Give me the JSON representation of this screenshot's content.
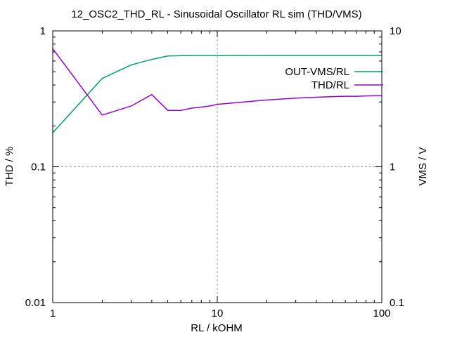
{
  "chart_data": {
    "type": "line",
    "title": "12_OSC2_THD_RL - Sinusoidal Oscillator RL sim  (THD/VMS)",
    "xlabel": "RL / kOHM",
    "ylabel_left": "THD / %",
    "ylabel_right": "VMS / V",
    "x_scale": "log",
    "y_scale": "log",
    "xlim": [
      1,
      100
    ],
    "ylim_left": [
      0.01,
      1
    ],
    "ylim_right": [
      0.1,
      10
    ],
    "x_ticks": [
      1,
      10,
      100
    ],
    "x_tick_labels": [
      "1",
      "10",
      "100"
    ],
    "y_left_ticks": [
      0.01,
      0.1,
      1
    ],
    "y_left_tick_labels": [
      "0.01",
      "0.1",
      "1"
    ],
    "y_right_ticks": [
      0.1,
      1,
      10
    ],
    "y_right_tick_labels": [
      "0.1",
      "1",
      "10"
    ],
    "grid": true,
    "legend_position": "top-right",
    "series": [
      {
        "name": "OUT-VMS/RL",
        "axis": "right",
        "color": "#009e73",
        "x": [
          1,
          2,
          3,
          4,
          5,
          6,
          7,
          8,
          9,
          10,
          20,
          30,
          40,
          50,
          60,
          70,
          80,
          90,
          100
        ],
        "y": [
          1.78,
          4.47,
          5.62,
          6.17,
          6.53,
          6.57,
          6.58,
          6.58,
          6.58,
          6.58,
          6.6,
          6.6,
          6.6,
          6.6,
          6.6,
          6.6,
          6.6,
          6.6,
          6.6
        ]
      },
      {
        "name": "THD/RL",
        "axis": "left",
        "color": "#9400d3",
        "x": [
          1,
          2,
          3,
          4,
          5,
          6,
          7,
          8,
          9,
          10,
          20,
          30,
          40,
          50,
          60,
          70,
          80,
          90,
          100
        ],
        "y": [
          0.74,
          0.24,
          0.28,
          0.34,
          0.26,
          0.26,
          0.27,
          0.275,
          0.28,
          0.288,
          0.31,
          0.32,
          0.325,
          0.328,
          0.33,
          0.33,
          0.332,
          0.333,
          0.333
        ]
      }
    ]
  }
}
